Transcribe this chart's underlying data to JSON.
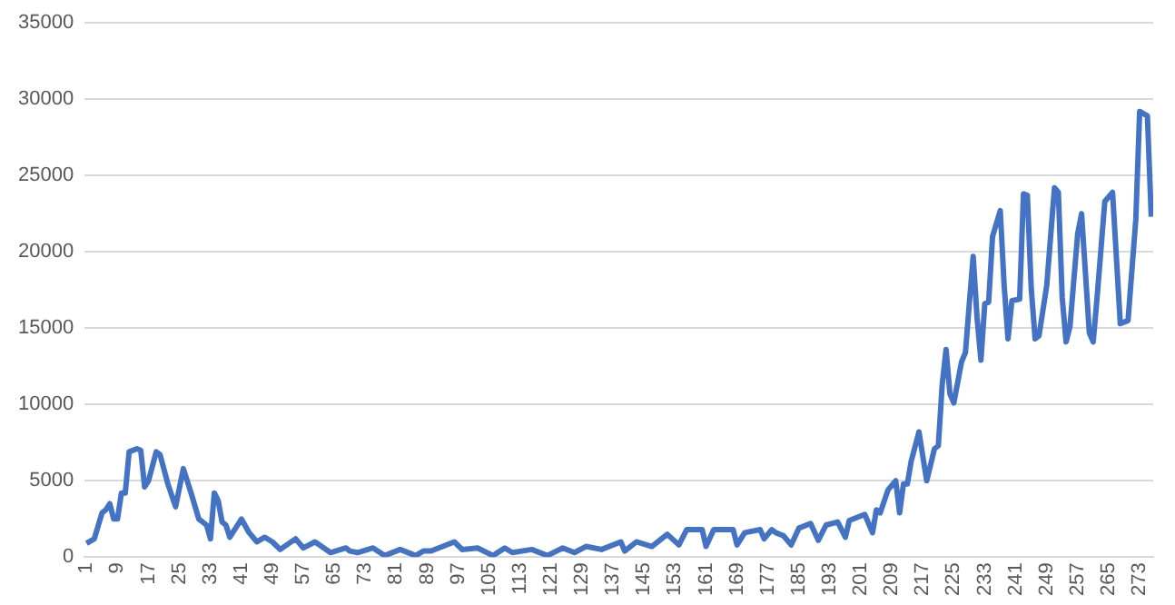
{
  "chart_data": {
    "type": "line",
    "x": [
      1,
      3,
      5,
      6,
      7,
      8,
      9,
      10,
      11,
      12,
      14,
      15,
      16,
      17,
      19,
      20,
      22,
      24,
      26,
      28,
      30,
      32,
      33,
      34,
      35,
      36,
      37,
      38,
      41,
      43,
      45,
      47,
      49,
      51,
      55,
      57,
      60,
      64,
      68,
      69,
      71,
      75,
      78,
      82,
      86,
      88,
      90,
      96,
      98,
      102,
      106,
      109,
      111,
      116,
      120,
      124,
      127,
      130,
      134,
      139,
      140,
      143,
      147,
      149,
      151,
      154,
      156,
      160,
      161,
      163,
      168,
      169,
      171,
      175,
      176,
      178,
      179,
      181,
      183,
      185,
      188,
      190,
      192,
      195,
      197,
      198,
      202,
      204,
      205,
      206,
      208,
      210,
      211,
      212,
      213,
      214,
      216,
      218,
      220,
      221,
      222,
      223,
      224,
      225,
      227,
      228,
      229,
      230,
      231,
      232,
      233,
      234,
      235,
      237,
      238,
      239,
      240,
      242,
      243,
      244,
      245,
      246,
      247,
      249,
      251,
      252,
      253,
      254,
      255,
      257,
      258,
      260,
      261,
      262,
      264,
      266,
      268,
      270,
      272,
      273,
      275,
      276
    ],
    "series": [
      {
        "color": "#4472c4",
        "values": [
          900,
          1200,
          2900,
          3100,
          3500,
          2500,
          2500,
          4200,
          4200,
          6900,
          7100,
          7000,
          4600,
          5000,
          6900,
          6700,
          4800,
          3300,
          5800,
          4200,
          2500,
          2100,
          1200,
          4200,
          3700,
          2300,
          2100,
          1300,
          2500,
          1600,
          1000,
          1300,
          1000,
          500,
          1200,
          600,
          1000,
          300,
          600,
          400,
          300,
          600,
          100,
          500,
          100,
          400,
          400,
          1000,
          500,
          600,
          100,
          600,
          300,
          500,
          100,
          600,
          300,
          700,
          500,
          1000,
          400,
          1000,
          700,
          1100,
          1500,
          800,
          1800,
          1800,
          700,
          1800,
          1800,
          800,
          1600,
          1800,
          1200,
          1800,
          1600,
          1400,
          800,
          1900,
          2200,
          1100,
          2100,
          2300,
          1300,
          2400,
          2800,
          1600,
          3100,
          2900,
          4400,
          5000,
          2900,
          4800,
          4800,
          6300,
          8200,
          5000,
          7100,
          7300,
          11300,
          13600,
          10700,
          10100,
          12800,
          13400,
          16600,
          19700,
          15700,
          12900,
          16600,
          16700,
          21000,
          22700,
          17800,
          14300,
          16800,
          16900,
          23800,
          23700,
          17600,
          14300,
          14500,
          17800,
          24200,
          23900,
          17000,
          14100,
          15100,
          21200,
          22500,
          14700,
          14100,
          17000,
          23300,
          23900,
          15300,
          15500,
          22100,
          29200,
          28900,
          22300
        ]
      }
    ],
    "xlim": [
      0.5,
      276.5
    ],
    "xticks": [
      1,
      9,
      17,
      25,
      33,
      41,
      49,
      57,
      65,
      73,
      81,
      89,
      97,
      105,
      113,
      121,
      129,
      137,
      145,
      153,
      161,
      169,
      177,
      185,
      193,
      201,
      209,
      217,
      225,
      233,
      241,
      249,
      257,
      265,
      273
    ],
    "ylim": [
      0,
      35000
    ],
    "yticks": [
      0,
      5000,
      10000,
      15000,
      20000,
      25000,
      30000,
      35000
    ],
    "grid": "y",
    "legend": false
  }
}
